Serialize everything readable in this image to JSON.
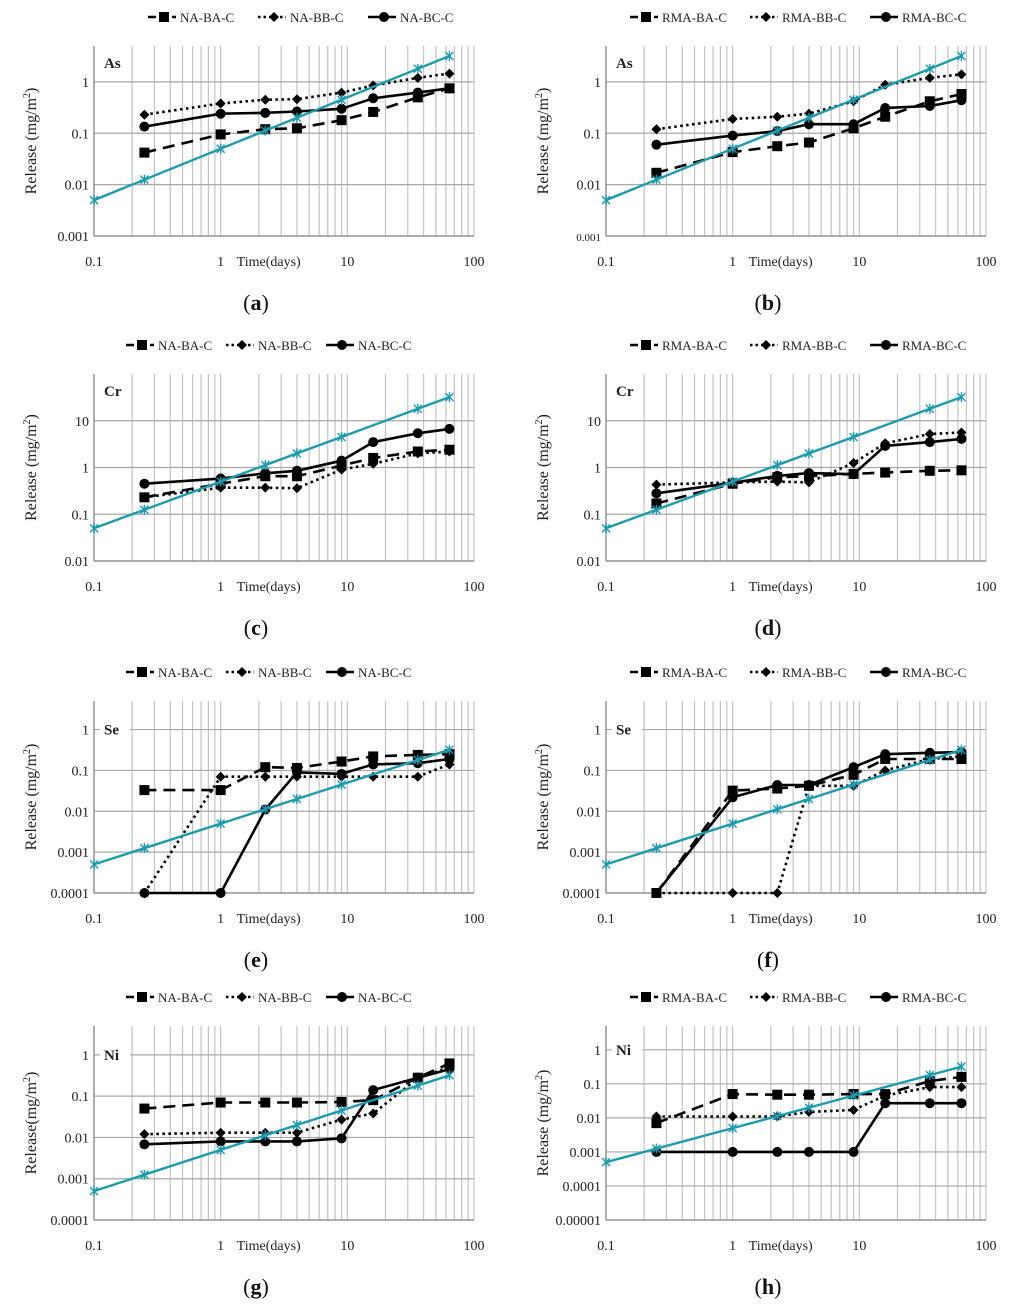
{
  "figure": {
    "x_axis_label": "Time(days)",
    "y_axis_label": "Release (mg/m²)",
    "x_ticks": [
      "0.1",
      "1",
      "10",
      "100"
    ],
    "reference_line_color": "#1a9bb0",
    "series_color": "#000000"
  },
  "chart_data": [
    {
      "id": "a",
      "caption": "a",
      "type": "line",
      "element": "As",
      "legend": [
        "NA-BA-C",
        "NA-BB-C",
        "NA-BC-C"
      ],
      "xlabel": "Time(days)",
      "ylabel": "Release (mg/m2)",
      "xscale": "log",
      "yscale": "log",
      "xlim": [
        0.1,
        100
      ],
      "ylim": [
        0.001,
        5
      ],
      "yticks": [
        "0.001",
        "0.01",
        "0.1",
        "1"
      ],
      "ytick_values": [
        0.001,
        0.01,
        0.1,
        1
      ],
      "grid": true,
      "legend_position": "top",
      "x": [
        0.25,
        1,
        2.25,
        4,
        9,
        16,
        36,
        64
      ],
      "series": [
        {
          "name": "NA-BA-C",
          "style": "dashed",
          "marker": "square",
          "values": [
            0.042,
            0.095,
            0.12,
            0.125,
            0.18,
            0.26,
            0.5,
            0.75
          ]
        },
        {
          "name": "NA-BB-C",
          "style": "dotted",
          "marker": "diamond",
          "values": [
            0.23,
            0.38,
            0.45,
            0.46,
            0.62,
            0.85,
            1.2,
            1.45
          ]
        },
        {
          "name": "NA-BC-C",
          "style": "solid",
          "marker": "circle",
          "values": [
            0.135,
            0.24,
            0.25,
            0.265,
            0.3,
            0.48,
            0.62,
            0.75
          ]
        },
        {
          "name": "reference",
          "style": "solid-teal",
          "marker": "star",
          "x": [
            0.1,
            0.25,
            1,
            2.25,
            4,
            9,
            36,
            64
          ],
          "values": [
            0.005,
            0.0125,
            0.05,
            0.1125,
            0.2,
            0.45,
            1.8,
            3.2
          ]
        }
      ]
    },
    {
      "id": "b",
      "caption": "b",
      "type": "line",
      "element": "As",
      "legend": [
        "RMA-BA-C",
        "RMA-BB-C",
        "RMA-BC-C"
      ],
      "xlabel": "Time(days)",
      "ylabel": "Release (mg/m2)",
      "xscale": "log",
      "yscale": "log",
      "xlim": [
        0.1,
        100
      ],
      "ylim": [
        0.001,
        5
      ],
      "yticks": [
        "0.001",
        "0.01",
        "0.1",
        "1"
      ],
      "ytick_values": [
        0.001,
        0.01,
        0.1,
        1
      ],
      "grid": true,
      "legend_position": "top",
      "x": [
        0.25,
        1,
        2.25,
        4,
        9,
        16,
        36,
        64
      ],
      "series": [
        {
          "name": "RMA-BA-C",
          "style": "dashed",
          "marker": "square",
          "values": [
            0.017,
            0.043,
            0.056,
            0.066,
            0.125,
            0.21,
            0.42,
            0.58
          ]
        },
        {
          "name": "RMA-BB-C",
          "style": "dotted",
          "marker": "diamond",
          "values": [
            0.12,
            0.19,
            0.21,
            0.24,
            0.42,
            0.88,
            1.2,
            1.4
          ]
        },
        {
          "name": "RMA-BC-C",
          "style": "solid",
          "marker": "circle",
          "values": [
            0.06,
            0.09,
            0.11,
            0.15,
            0.15,
            0.31,
            0.34,
            0.44
          ]
        },
        {
          "name": "reference",
          "style": "solid-teal",
          "marker": "star",
          "x": [
            0.1,
            0.25,
            1,
            2.25,
            4,
            9,
            36,
            64
          ],
          "values": [
            0.005,
            0.0125,
            0.05,
            0.1125,
            0.2,
            0.45,
            1.8,
            3.2
          ]
        }
      ]
    },
    {
      "id": "c",
      "caption": "c",
      "type": "line",
      "element": "Cr",
      "legend": [
        "NA-BA-C",
        "NA-BB-C",
        "NA-BC-C"
      ],
      "xlabel": "Time(days)",
      "ylabel": "Release (mg/m2)",
      "xscale": "log",
      "yscale": "log",
      "xlim": [
        0.1,
        100
      ],
      "ylim": [
        0.01,
        100
      ],
      "yticks": [
        "0.01",
        "0.1",
        "1",
        "10"
      ],
      "ytick_values": [
        0.01,
        0.1,
        1,
        10
      ],
      "grid": true,
      "legend_position": "top",
      "x": [
        0.25,
        1,
        2.25,
        4,
        9,
        16,
        36,
        64
      ],
      "series": [
        {
          "name": "NA-BA-C",
          "style": "dashed",
          "marker": "square",
          "values": [
            0.23,
            0.45,
            0.65,
            0.65,
            1.1,
            1.6,
            2.2,
            2.4
          ]
        },
        {
          "name": "NA-BB-C",
          "style": "dotted",
          "marker": "diamond",
          "values": [
            0.23,
            0.37,
            0.37,
            0.36,
            0.9,
            1.2,
            2.0,
            2.2
          ]
        },
        {
          "name": "NA-BC-C",
          "style": "solid",
          "marker": "circle",
          "values": [
            0.45,
            0.58,
            0.75,
            0.85,
            1.4,
            3.5,
            5.4,
            6.7
          ]
        },
        {
          "name": "reference",
          "style": "solid-teal",
          "marker": "star",
          "x": [
            0.1,
            0.25,
            1,
            2.25,
            4,
            9,
            36,
            64
          ],
          "values": [
            0.05,
            0.125,
            0.5,
            1.125,
            2.0,
            4.5,
            18,
            32
          ]
        }
      ]
    },
    {
      "id": "d",
      "caption": "d",
      "type": "line",
      "element": "Cr",
      "legend": [
        "RMA-BA-C",
        "RMA-BB-C",
        "RMA-BC-C"
      ],
      "xlabel": "Time(days)",
      "ylabel": "Release (mg/m2)",
      "xscale": "log",
      "yscale": "log",
      "xlim": [
        0.1,
        100
      ],
      "ylim": [
        0.01,
        100
      ],
      "yticks": [
        "0.01",
        "0.1",
        "1",
        "10"
      ],
      "ytick_values": [
        0.01,
        0.1,
        1,
        10
      ],
      "grid": true,
      "legend_position": "top",
      "x": [
        0.25,
        1,
        2.25,
        4,
        9,
        16,
        36,
        64
      ],
      "series": [
        {
          "name": "RMA-BA-C",
          "style": "dashed",
          "marker": "square",
          "values": [
            0.17,
            0.45,
            0.62,
            0.65,
            0.73,
            0.78,
            0.85,
            0.87
          ]
        },
        {
          "name": "RMA-BB-C",
          "style": "dotted",
          "marker": "diamond",
          "values": [
            0.43,
            0.48,
            0.5,
            0.48,
            1.25,
            3.3,
            5.2,
            5.6
          ]
        },
        {
          "name": "RMA-BC-C",
          "style": "solid",
          "marker": "circle",
          "values": [
            0.28,
            0.47,
            0.66,
            0.76,
            0.72,
            2.9,
            3.5,
            4.1
          ]
        },
        {
          "name": "reference",
          "style": "solid-teal",
          "marker": "star",
          "x": [
            0.1,
            0.25,
            1,
            2.25,
            4,
            9,
            36,
            64
          ],
          "values": [
            0.05,
            0.125,
            0.5,
            1.125,
            2.0,
            4.5,
            18,
            32
          ]
        }
      ]
    },
    {
      "id": "e",
      "caption": "e",
      "type": "line",
      "element": "Se",
      "legend": [
        "NA-BA-C",
        "NA-BB-C",
        "NA-BC-C"
      ],
      "xlabel": "Time(days)",
      "ylabel": "Release (mg/m2)",
      "xscale": "log",
      "yscale": "log",
      "xlim": [
        0.1,
        100
      ],
      "ylim": [
        0.0001,
        5
      ],
      "yticks": [
        "0.0001",
        "0.001",
        "0.01",
        "0.1",
        "1"
      ],
      "ytick_values": [
        0.0001,
        0.001,
        0.01,
        0.1,
        1
      ],
      "grid": true,
      "legend_position": "top",
      "x": [
        0.25,
        1,
        2.25,
        4,
        9,
        16,
        36,
        64
      ],
      "series": [
        {
          "name": "NA-BA-C",
          "style": "dashed",
          "marker": "square",
          "values": [
            0.033,
            0.033,
            0.12,
            0.115,
            0.165,
            0.22,
            0.24,
            0.25
          ]
        },
        {
          "name": "NA-BB-C",
          "style": "dotted",
          "marker": "diamond",
          "values": [
            0.0001,
            0.07,
            0.07,
            0.07,
            0.07,
            0.07,
            0.07,
            0.14
          ]
        },
        {
          "name": "NA-BC-C",
          "style": "solid",
          "marker": "circle",
          "values": [
            0.0001,
            0.0001,
            0.011,
            0.09,
            0.082,
            0.14,
            0.15,
            0.19
          ]
        },
        {
          "name": "reference",
          "style": "solid-teal",
          "marker": "star",
          "x": [
            0.1,
            0.25,
            1,
            2.25,
            4,
            9,
            36,
            64
          ],
          "values": [
            0.0005,
            0.00125,
            0.005,
            0.01125,
            0.02,
            0.045,
            0.18,
            0.32
          ]
        }
      ]
    },
    {
      "id": "f",
      "caption": "f",
      "type": "line",
      "element": "Se",
      "legend": [
        "RMA-BA-C",
        "RMA-BB-C",
        "RMA-BC-C"
      ],
      "xlabel": "Time(days)",
      "ylabel": "Release (mg/m2)",
      "xscale": "log",
      "yscale": "log",
      "xlim": [
        0.1,
        100
      ],
      "ylim": [
        0.0001,
        5
      ],
      "yticks": [
        "0.0001",
        "0.001",
        "0.01",
        "0.1",
        "1"
      ],
      "ytick_values": [
        0.0001,
        0.001,
        0.01,
        0.1,
        1
      ],
      "grid": true,
      "legend_position": "top",
      "x": [
        0.25,
        1,
        2.25,
        4,
        9,
        16,
        36,
        64
      ],
      "series": [
        {
          "name": "RMA-BA-C",
          "style": "dashed",
          "marker": "square",
          "values": [
            0.0001,
            0.032,
            0.036,
            0.042,
            0.078,
            0.19,
            0.19,
            0.19
          ]
        },
        {
          "name": "RMA-BB-C",
          "style": "dotted",
          "marker": "diamond",
          "values": [
            0.0001,
            0.0001,
            0.0001,
            0.042,
            0.042,
            0.1,
            0.19,
            0.22
          ]
        },
        {
          "name": "RMA-BC-C",
          "style": "solid",
          "marker": "circle",
          "values": [
            0.0001,
            0.022,
            0.044,
            0.044,
            0.12,
            0.25,
            0.27,
            0.28
          ]
        },
        {
          "name": "reference",
          "style": "solid-teal",
          "marker": "star",
          "x": [
            0.1,
            0.25,
            1,
            2.25,
            4,
            9,
            36,
            64
          ],
          "values": [
            0.0005,
            0.00125,
            0.005,
            0.01125,
            0.02,
            0.045,
            0.18,
            0.32
          ]
        }
      ]
    },
    {
      "id": "g",
      "caption": "g",
      "type": "line",
      "element": "Ni",
      "legend": [
        "NA-BA-C",
        "NA-BB-C",
        "NA-BC-C"
      ],
      "xlabel": "Time(days)",
      "ylabel": "Release(mg/m2)",
      "xscale": "log",
      "yscale": "log",
      "xlim": [
        0.1,
        100
      ],
      "ylim": [
        0.0001,
        5
      ],
      "yticks": [
        "0.0001",
        "0.001",
        "0.01",
        "0.1",
        "1"
      ],
      "ytick_values": [
        0.0001,
        0.001,
        0.01,
        0.1,
        1
      ],
      "grid": true,
      "legend_position": "top",
      "x": [
        0.25,
        1,
        2.25,
        4,
        9,
        16,
        36,
        64
      ],
      "series": [
        {
          "name": "NA-BA-C",
          "style": "dashed",
          "marker": "square",
          "values": [
            0.05,
            0.07,
            0.07,
            0.07,
            0.072,
            0.08,
            0.28,
            0.62
          ]
        },
        {
          "name": "NA-BB-C",
          "style": "dotted",
          "marker": "diamond",
          "values": [
            0.012,
            0.013,
            0.013,
            0.013,
            0.027,
            0.038,
            0.27,
            0.5
          ]
        },
        {
          "name": "NA-BC-C",
          "style": "solid",
          "marker": "circle",
          "values": [
            0.0068,
            0.008,
            0.008,
            0.008,
            0.0095,
            0.14,
            0.28,
            0.45
          ]
        },
        {
          "name": "reference",
          "style": "solid-teal",
          "marker": "star",
          "x": [
            0.1,
            0.25,
            1,
            2.25,
            4,
            9,
            36,
            64
          ],
          "values": [
            0.0005,
            0.00125,
            0.005,
            0.01125,
            0.02,
            0.045,
            0.18,
            0.32
          ]
        }
      ]
    },
    {
      "id": "h",
      "caption": "h",
      "type": "line",
      "element": "Ni",
      "legend": [
        "RMA-BA-C",
        "RMA-BB-C",
        "RMA-BC-C"
      ],
      "xlabel": "Time(days)",
      "ylabel": "Release (mg/m2)",
      "xscale": "log",
      "yscale": "log",
      "xlim": [
        0.1,
        100
      ],
      "ylim": [
        1e-05,
        5
      ],
      "yticks": [
        "0.00001",
        "0.0001",
        "0.001",
        "0.01",
        "0.1",
        "1"
      ],
      "ytick_values": [
        1e-05,
        0.0001,
        0.001,
        0.01,
        0.1,
        1
      ],
      "grid": true,
      "legend_position": "top",
      "x": [
        0.25,
        1,
        2.25,
        4,
        9,
        16,
        36,
        64
      ],
      "series": [
        {
          "name": "RMA-BA-C",
          "style": "dashed",
          "marker": "square",
          "values": [
            0.007,
            0.05,
            0.048,
            0.048,
            0.05,
            0.05,
            0.12,
            0.16
          ]
        },
        {
          "name": "RMA-BB-C",
          "style": "dotted",
          "marker": "diamond",
          "values": [
            0.011,
            0.011,
            0.011,
            0.015,
            0.017,
            0.045,
            0.08,
            0.08
          ]
        },
        {
          "name": "RMA-BC-C",
          "style": "solid",
          "marker": "circle",
          "values": [
            0.001,
            0.001,
            0.001,
            0.001,
            0.001,
            0.027,
            0.027,
            0.027
          ]
        },
        {
          "name": "reference",
          "style": "solid-teal",
          "marker": "star",
          "x": [
            0.1,
            0.25,
            1,
            2.25,
            4,
            9,
            36,
            64
          ],
          "values": [
            0.0005,
            0.00125,
            0.005,
            0.01125,
            0.02,
            0.045,
            0.18,
            0.32
          ]
        }
      ]
    }
  ]
}
